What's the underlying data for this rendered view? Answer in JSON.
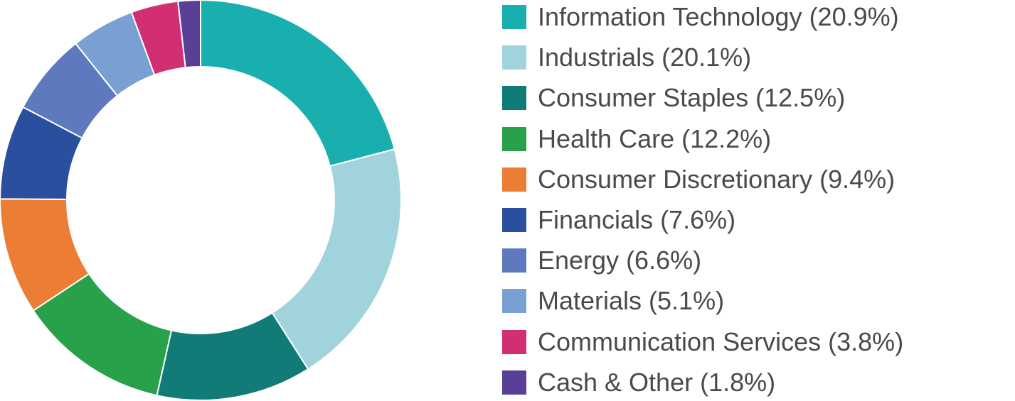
{
  "chart_data": {
    "type": "pie",
    "style": "donut",
    "title": "",
    "legend_position": "right",
    "categories": [
      "Information Technology",
      "Industrials",
      "Consumer Staples",
      "Health Care",
      "Consumer Discretionary",
      "Financials",
      "Energy",
      "Materials",
      "Communication Services",
      "Cash & Other"
    ],
    "values": [
      20.9,
      20.1,
      12.5,
      12.2,
      9.4,
      7.6,
      6.6,
      5.1,
      3.8,
      1.8
    ],
    "unit": "%",
    "colors": [
      "#1aafaf",
      "#a0d3dc",
      "#117b77",
      "#29a04a",
      "#eb7d35",
      "#2a4f9e",
      "#5e79bd",
      "#7a9fd3",
      "#d12e73",
      "#5a3f96"
    ],
    "legend_labels": [
      "Information Technology (20.9%)",
      "Industrials (20.1%)",
      "Consumer Staples (12.5%)",
      "Health Care (12.2%)",
      "Consumer Discretionary (9.4%)",
      "Financials (7.6%)",
      "Energy (6.6%)",
      "Materials (5.1%)",
      "Communication Services (3.8%)",
      "Cash & Other (1.8%)"
    ]
  }
}
